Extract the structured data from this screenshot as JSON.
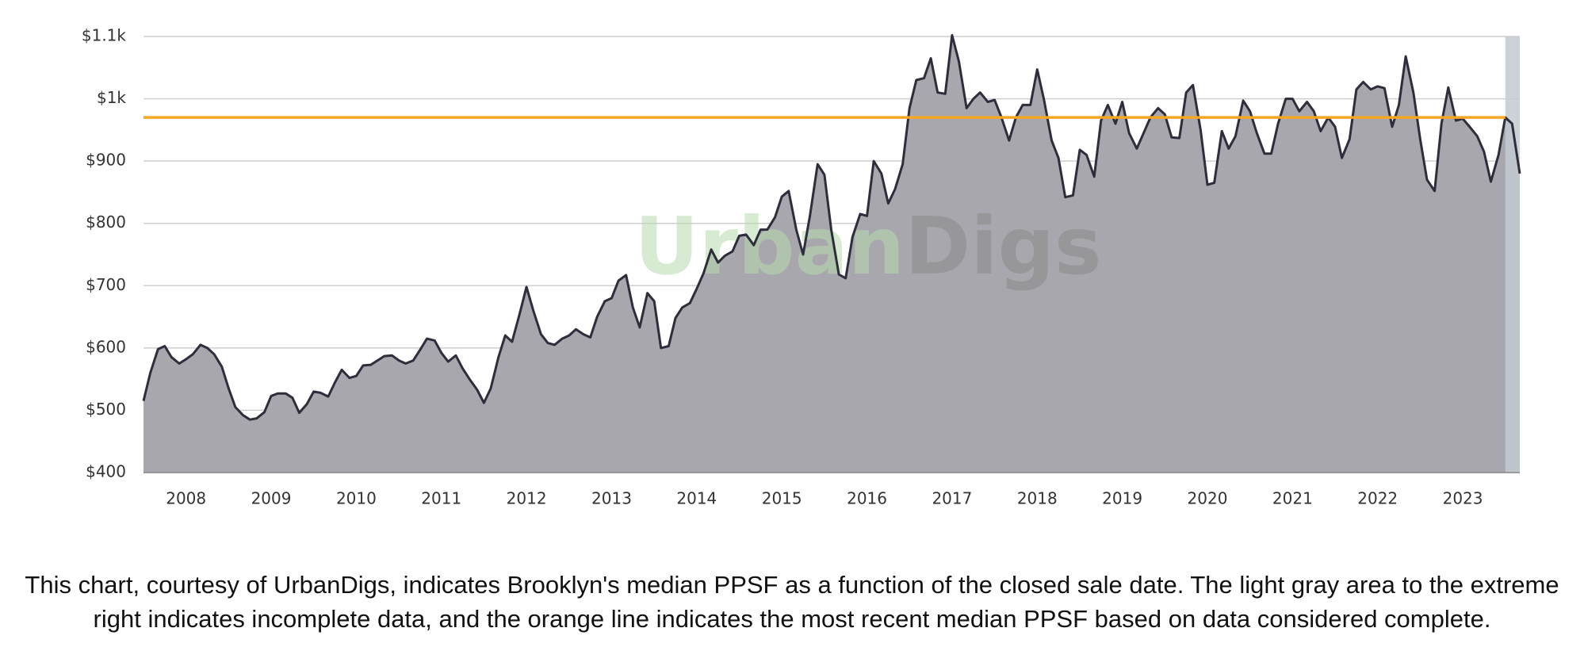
{
  "chart_data": {
    "type": "area",
    "x": [
      2008,
      2008.08,
      2008.17,
      2008.25,
      2008.33,
      2008.42,
      2008.5,
      2008.58,
      2008.67,
      2008.75,
      2008.83,
      2008.92,
      2009,
      2009.08,
      2009.17,
      2009.25,
      2009.33,
      2009.42,
      2009.5,
      2009.58,
      2009.67,
      2009.75,
      2009.83,
      2009.92,
      2010,
      2010.08,
      2010.17,
      2010.25,
      2010.33,
      2010.42,
      2010.5,
      2010.58,
      2010.67,
      2010.75,
      2010.83,
      2010.92,
      2011,
      2011.08,
      2011.17,
      2011.25,
      2011.33,
      2011.42,
      2011.5,
      2011.58,
      2011.67,
      2011.75,
      2011.83,
      2011.92,
      2012,
      2012.08,
      2012.17,
      2012.25,
      2012.33,
      2012.42,
      2012.5,
      2012.58,
      2012.67,
      2012.75,
      2012.83,
      2012.92,
      2013,
      2013.08,
      2013.17,
      2013.25,
      2013.33,
      2013.42,
      2013.5,
      2013.58,
      2013.67,
      2013.75,
      2013.83,
      2013.92,
      2014,
      2014.08,
      2014.17,
      2014.25,
      2014.33,
      2014.42,
      2014.5,
      2014.58,
      2014.67,
      2014.75,
      2014.83,
      2014.92,
      2015,
      2015.08,
      2015.17,
      2015.25,
      2015.33,
      2015.42,
      2015.5,
      2015.58,
      2015.67,
      2015.75,
      2015.83,
      2015.92,
      2016,
      2016.08,
      2016.17,
      2016.25,
      2016.33,
      2016.42,
      2016.5,
      2016.58,
      2016.67,
      2016.75,
      2016.83,
      2016.92,
      2017,
      2017.08,
      2017.17,
      2017.25,
      2017.33,
      2017.42,
      2017.5,
      2017.58,
      2017.67,
      2017.75,
      2017.83,
      2017.92,
      2018,
      2018.08,
      2018.17,
      2018.25,
      2018.33,
      2018.42,
      2018.5,
      2018.58,
      2018.67,
      2018.75,
      2018.83,
      2018.92,
      2019,
      2019.08,
      2019.17,
      2019.25,
      2019.33,
      2019.42,
      2019.5,
      2019.58,
      2019.67,
      2019.75,
      2019.83,
      2019.92,
      2020,
      2020.08,
      2020.17,
      2020.25,
      2020.33,
      2020.42,
      2020.5,
      2020.58,
      2020.67,
      2020.75,
      2020.83,
      2020.92,
      2021,
      2021.08,
      2021.17,
      2021.25,
      2021.33,
      2021.42,
      2021.5,
      2021.58,
      2021.67,
      2021.75,
      2021.83,
      2021.92,
      2022,
      2022.08,
      2022.17,
      2022.25,
      2022.33,
      2022.42,
      2022.5,
      2022.58,
      2022.67,
      2022.75,
      2022.83,
      2022.92,
      2023,
      2023.08,
      2023.17,
      2023.25,
      2023.33,
      2023.42,
      2023.5,
      2023.58,
      2023.67,
      2023.75,
      2023.83,
      2023.92,
      2024,
      2024.08,
      2024.17
    ],
    "values": [
      515,
      560,
      598,
      603,
      585,
      575,
      582,
      590,
      605,
      600,
      590,
      570,
      535,
      505,
      492,
      485,
      487,
      497,
      523,
      527,
      527,
      520,
      496,
      510,
      530,
      528,
      522,
      545,
      565,
      552,
      555,
      572,
      573,
      580,
      587,
      588,
      580,
      575,
      580,
      597,
      615,
      612,
      592,
      578,
      588,
      567,
      550,
      533,
      512,
      535,
      585,
      620,
      610,
      655,
      698,
      660,
      622,
      608,
      605,
      615,
      620,
      630,
      622,
      617,
      650,
      675,
      680,
      708,
      717,
      665,
      633,
      688,
      675,
      600,
      603,
      648,
      665,
      672,
      695,
      720,
      758,
      737,
      748,
      755,
      780,
      782,
      765,
      790,
      790,
      810,
      843,
      852,
      790,
      750,
      812,
      895,
      878,
      790,
      718,
      712,
      778,
      815,
      812,
      900,
      880,
      832,
      855,
      895,
      985,
      1030,
      1033,
      1065,
      1010,
      1008,
      1102,
      1060,
      985,
      1000,
      1010,
      995,
      998,
      970,
      933,
      970,
      990,
      990,
      1047,
      998,
      933,
      905,
      842,
      845,
      918,
      910,
      875,
      965,
      990,
      960,
      995,
      945,
      920,
      945,
      970,
      985,
      975,
      938,
      937,
      1010,
      1022,
      950,
      862,
      865,
      948,
      920,
      940,
      997,
      980,
      945,
      912,
      912,
      960,
      1000,
      1000,
      980,
      995,
      980,
      948,
      970,
      955,
      905,
      935,
      1015,
      1027,
      1015,
      1020,
      1017,
      955,
      990,
      1068,
      1010,
      935,
      870,
      852,
      960,
      1018,
      965,
      968,
      955,
      940,
      915,
      867,
      910,
      970,
      960,
      880
    ],
    "line_color": "#2e2d3b",
    "fill_color": "#a8a7ad",
    "xlim": [
      2008,
      2024.17
    ],
    "xticks": [
      {
        "value": 2008.5,
        "label": "2008"
      },
      {
        "value": 2009.5,
        "label": "2009"
      },
      {
        "value": 2010.5,
        "label": "2010"
      },
      {
        "value": 2011.5,
        "label": "2011"
      },
      {
        "value": 2012.5,
        "label": "2012"
      },
      {
        "value": 2013.5,
        "label": "2013"
      },
      {
        "value": 2014.5,
        "label": "2014"
      },
      {
        "value": 2015.5,
        "label": "2015"
      },
      {
        "value": 2016.5,
        "label": "2016"
      },
      {
        "value": 2017.5,
        "label": "2017"
      },
      {
        "value": 2018.5,
        "label": "2018"
      },
      {
        "value": 2019.5,
        "label": "2019"
      },
      {
        "value": 2020.5,
        "label": "2020"
      },
      {
        "value": 2021.5,
        "label": "2021"
      },
      {
        "value": 2022.5,
        "label": "2022"
      },
      {
        "value": 2023.5,
        "label": "2023"
      }
    ],
    "ylim": [
      400,
      1100
    ],
    "yticks": [
      {
        "value": 400,
        "label": "$400"
      },
      {
        "value": 500,
        "label": "$500"
      },
      {
        "value": 600,
        "label": "$600"
      },
      {
        "value": 700,
        "label": "$700"
      },
      {
        "value": 800,
        "label": "$800"
      },
      {
        "value": 900,
        "label": "$900"
      },
      {
        "value": 1000,
        "label": "$1k"
      },
      {
        "value": 1100,
        "label": "$1.1k"
      }
    ],
    "grid": true,
    "reference_line": {
      "value": 970,
      "color": "#f5a623"
    },
    "incomplete_region": {
      "xlim": [
        2024,
        2024.17
      ],
      "color": "#c3cad1"
    },
    "watermark": [
      "Urban",
      "Digs"
    ]
  },
  "caption": "This chart, courtesy of UrbanDigs, indicates Brooklyn's median PPSF as a function of the closed sale date. The light gray area to the extreme right indicates incomplete data, and the orange line indicates the most recent median PPSF based on data considered complete."
}
